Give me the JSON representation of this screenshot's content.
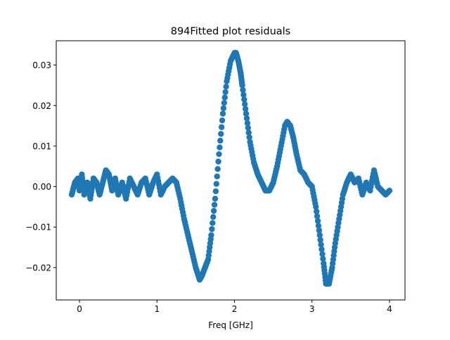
{
  "chart_data": {
    "type": "scatter",
    "title": "894Fitted plot residuals",
    "xlabel": "Freq [GHz]",
    "ylabel": "",
    "xlim": [
      -0.3,
      4.2
    ],
    "ylim": [
      -0.028,
      0.036
    ],
    "xticks": [
      0,
      1,
      2,
      3,
      4
    ],
    "yticks": [
      -0.02,
      -0.01,
      0.0,
      0.01,
      0.02,
      0.03
    ],
    "ytick_labels": [
      "−0.02",
      "−0.01",
      "0.00",
      "0.01",
      "0.02",
      "0.03"
    ],
    "grid": false,
    "series": [
      {
        "name": "",
        "color": "#1f77b4",
        "marker": "circle",
        "x": [
          -0.1,
          -0.06,
          -0.02,
          0.0,
          0.03,
          0.06,
          0.1,
          0.14,
          0.18,
          0.22,
          0.26,
          0.3,
          0.34,
          0.38,
          0.42,
          0.46,
          0.5,
          0.55,
          0.6,
          0.65,
          0.7,
          0.75,
          0.8,
          0.85,
          0.9,
          0.95,
          1.0,
          1.05,
          1.1,
          1.15,
          1.2,
          1.25,
          1.3,
          1.35,
          1.4,
          1.45,
          1.5,
          1.55,
          1.58,
          1.62,
          1.66,
          1.7,
          1.75,
          1.8,
          1.85,
          1.9,
          1.95,
          2.0,
          2.02,
          2.05,
          2.08,
          2.1,
          2.15,
          2.2,
          2.25,
          2.3,
          2.35,
          2.4,
          2.45,
          2.5,
          2.55,
          2.6,
          2.65,
          2.68,
          2.72,
          2.76,
          2.8,
          2.85,
          2.9,
          2.95,
          3.0,
          3.05,
          3.1,
          3.15,
          3.18,
          3.22,
          3.26,
          3.3,
          3.35,
          3.4,
          3.45,
          3.5,
          3.55,
          3.6,
          3.65,
          3.7,
          3.75,
          3.8,
          3.85,
          3.9,
          3.95,
          4.0
        ],
        "y": [
          -0.002,
          0.001,
          0.002,
          -0.001,
          0.003,
          -0.002,
          0.001,
          -0.003,
          0.002,
          0.001,
          -0.002,
          0.001,
          0.004,
          0.003,
          -0.001,
          0.002,
          -0.002,
          0.001,
          -0.003,
          0.002,
          0.0,
          -0.002,
          0.001,
          0.002,
          -0.002,
          0.001,
          0.003,
          -0.002,
          0.0,
          0.001,
          0.002,
          0.001,
          -0.003,
          -0.008,
          -0.012,
          -0.016,
          -0.02,
          -0.023,
          -0.022,
          -0.02,
          -0.018,
          -0.012,
          -0.003,
          0.008,
          0.018,
          0.026,
          0.031,
          0.033,
          0.033,
          0.031,
          0.028,
          0.025,
          0.018,
          0.011,
          0.006,
          0.003,
          0.001,
          -0.001,
          -0.001,
          0.001,
          0.005,
          0.01,
          0.015,
          0.016,
          0.015,
          0.012,
          0.008,
          0.004,
          0.003,
          0.001,
          0.0,
          -0.005,
          -0.012,
          -0.019,
          -0.024,
          -0.024,
          -0.02,
          -0.014,
          -0.008,
          -0.002,
          0.001,
          0.003,
          0.001,
          0.002,
          -0.002,
          0.001,
          -0.001,
          0.004,
          0.0,
          -0.001,
          -0.002,
          -0.001
        ]
      }
    ]
  }
}
